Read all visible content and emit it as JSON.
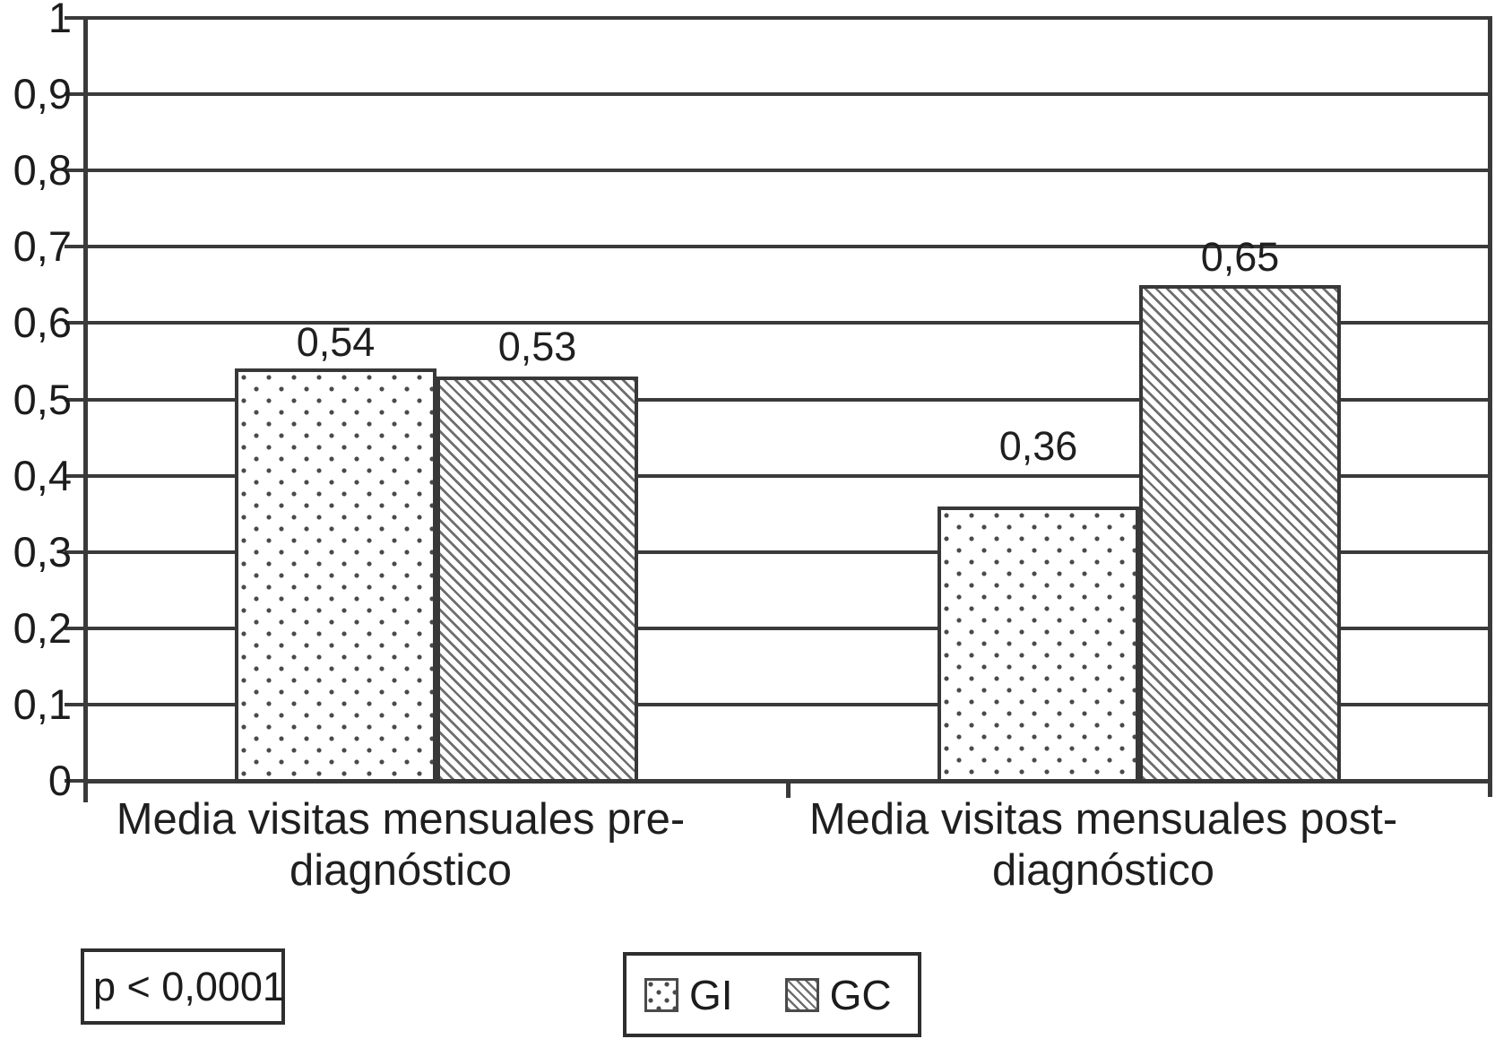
{
  "chart_data": {
    "type": "bar",
    "title": "",
    "xlabel": "",
    "ylabel": "",
    "categories": [
      {
        "label": "Media visitas mensuales pre-diagnóstico",
        "lines": [
          "Media visitas mensuales pre-",
          "diagnóstico"
        ]
      },
      {
        "label": "Media visitas mensuales post-diagnóstico",
        "lines": [
          "Media visitas mensuales post-",
          "diagnóstico"
        ]
      }
    ],
    "series": [
      {
        "name": "GI",
        "pattern": "dots",
        "values": [
          0.54,
          0.36
        ],
        "value_labels": [
          "0,54",
          "0,36"
        ]
      },
      {
        "name": "GC",
        "pattern": "hatch",
        "values": [
          0.53,
          0.65
        ],
        "value_labels": [
          "0,53",
          "0,65"
        ]
      }
    ],
    "ylim": [
      0,
      1
    ],
    "ytick_labels": [
      "0",
      "0,1",
      "0,2",
      "0,3",
      "0,4",
      "0,5",
      "0,6",
      "0,7",
      "0,8",
      "0,9",
      "1"
    ],
    "grid": true,
    "legend_position": "bottom-center",
    "colors": {
      "ink": "#3a3a3a",
      "text": "#1c1c1c",
      "pattern_dot": "#4a4a4a",
      "pattern_hatch": "#6e6e6e",
      "background": "#ffffff"
    }
  },
  "annotation": {
    "p_value": "p < 0,0001"
  },
  "legend": {
    "items": [
      {
        "label": "GI",
        "pattern": "dots"
      },
      {
        "label": "GC",
        "pattern": "hatch"
      }
    ]
  }
}
